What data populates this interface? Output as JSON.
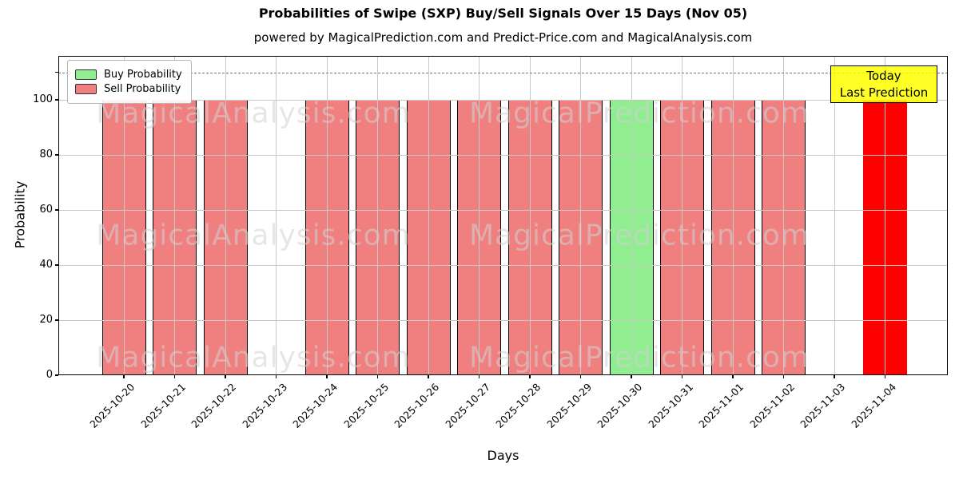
{
  "chart_data": {
    "type": "bar",
    "title": "Probabilities of Swipe (SXP) Buy/Sell Signals Over 15 Days (Nov 05)",
    "subtitle": "powered by MagicalPrediction.com and Predict-Price.com and MagicalAnalysis.com",
    "xlabel": "Days",
    "ylabel": "Probability",
    "ylim": [
      0,
      116
    ],
    "yticks": [
      0,
      20,
      40,
      60,
      80,
      100
    ],
    "dashed_guide_y": 110,
    "grid": true,
    "legend": {
      "position": "upper-left",
      "entries": [
        {
          "label": "Buy Probability",
          "color": "#90ee90"
        },
        {
          "label": "Sell Probability",
          "color": "#f08080"
        }
      ]
    },
    "annotation": {
      "lines": [
        "Today",
        "Last Prediction"
      ],
      "bg": "#ffff00",
      "bg_alpha": 0.85
    },
    "watermarks": {
      "left": "MagicalAnalysis.com",
      "right": "MagicalPrediction.com"
    },
    "colors": {
      "buy": "#90ee90",
      "sell": "#f08080",
      "today": "#ff0000",
      "bar_edge": "#000000",
      "grid": "#c9c9c9",
      "watermark": "rgba(210,210,210,0.55)"
    },
    "categories": [
      "2025-10-20",
      "2025-10-21",
      "2025-10-22",
      "2025-10-23",
      "2025-10-24",
      "2025-10-25",
      "2025-10-26",
      "2025-10-27",
      "2025-10-28",
      "2025-10-29",
      "2025-10-30",
      "2025-10-31",
      "2025-11-01",
      "2025-11-02",
      "2025-11-03",
      "2025-11-04"
    ],
    "series": [
      {
        "name": "Buy Probability",
        "values": [
          0,
          0,
          0,
          0,
          0,
          0,
          0,
          0,
          0,
          0,
          100,
          0,
          0,
          0,
          0,
          0
        ]
      },
      {
        "name": "Sell Probability",
        "values": [
          100,
          100,
          100,
          0,
          100,
          100,
          100,
          100,
          100,
          100,
          0,
          100,
          100,
          100,
          0,
          100
        ]
      }
    ],
    "days": [
      {
        "date": "2025-10-20",
        "signal": "sell",
        "value": 100
      },
      {
        "date": "2025-10-21",
        "signal": "sell",
        "value": 100
      },
      {
        "date": "2025-10-22",
        "signal": "sell",
        "value": 100
      },
      {
        "date": "2025-10-23",
        "signal": "none",
        "value": 0
      },
      {
        "date": "2025-10-24",
        "signal": "sell",
        "value": 100
      },
      {
        "date": "2025-10-25",
        "signal": "sell",
        "value": 100
      },
      {
        "date": "2025-10-26",
        "signal": "sell",
        "value": 100
      },
      {
        "date": "2025-10-27",
        "signal": "sell",
        "value": 100
      },
      {
        "date": "2025-10-28",
        "signal": "sell",
        "value": 100
      },
      {
        "date": "2025-10-29",
        "signal": "sell",
        "value": 100
      },
      {
        "date": "2025-10-30",
        "signal": "buy",
        "value": 100
      },
      {
        "date": "2025-10-31",
        "signal": "sell",
        "value": 100
      },
      {
        "date": "2025-11-01",
        "signal": "sell",
        "value": 100
      },
      {
        "date": "2025-11-02",
        "signal": "sell",
        "value": 100
      },
      {
        "date": "2025-11-03",
        "signal": "none",
        "value": 0
      },
      {
        "date": "2025-11-04",
        "signal": "today",
        "value": 100
      }
    ]
  }
}
